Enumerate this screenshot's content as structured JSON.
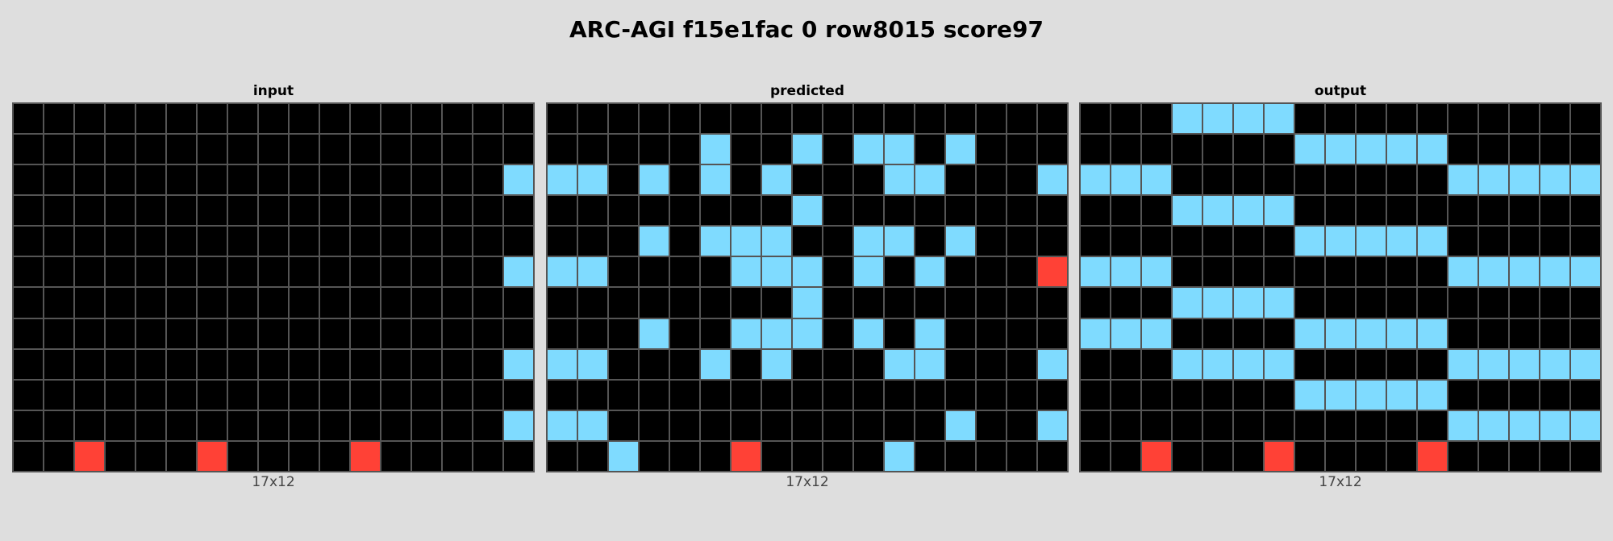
{
  "title": "ARC-AGI f15e1fac 0 row8015 score97",
  "palette": {
    "0": "#000000",
    "2": "#ff4136",
    "8": "#7fdbff"
  },
  "panels": [
    {
      "id": "input",
      "label": "input",
      "dims": "17x12",
      "grid": [
        [
          0,
          0,
          0,
          0,
          0,
          0,
          0,
          0,
          0,
          0,
          0,
          0,
          0,
          0,
          0,
          0,
          0
        ],
        [
          0,
          0,
          0,
          0,
          0,
          0,
          0,
          0,
          0,
          0,
          0,
          0,
          0,
          0,
          0,
          0,
          0
        ],
        [
          0,
          0,
          0,
          0,
          0,
          0,
          0,
          0,
          0,
          0,
          0,
          0,
          0,
          0,
          0,
          0,
          8
        ],
        [
          0,
          0,
          0,
          0,
          0,
          0,
          0,
          0,
          0,
          0,
          0,
          0,
          0,
          0,
          0,
          0,
          0
        ],
        [
          0,
          0,
          0,
          0,
          0,
          0,
          0,
          0,
          0,
          0,
          0,
          0,
          0,
          0,
          0,
          0,
          0
        ],
        [
          0,
          0,
          0,
          0,
          0,
          0,
          0,
          0,
          0,
          0,
          0,
          0,
          0,
          0,
          0,
          0,
          8
        ],
        [
          0,
          0,
          0,
          0,
          0,
          0,
          0,
          0,
          0,
          0,
          0,
          0,
          0,
          0,
          0,
          0,
          0
        ],
        [
          0,
          0,
          0,
          0,
          0,
          0,
          0,
          0,
          0,
          0,
          0,
          0,
          0,
          0,
          0,
          0,
          0
        ],
        [
          0,
          0,
          0,
          0,
          0,
          0,
          0,
          0,
          0,
          0,
          0,
          0,
          0,
          0,
          0,
          0,
          8
        ],
        [
          0,
          0,
          0,
          0,
          0,
          0,
          0,
          0,
          0,
          0,
          0,
          0,
          0,
          0,
          0,
          0,
          0
        ],
        [
          0,
          0,
          0,
          0,
          0,
          0,
          0,
          0,
          0,
          0,
          0,
          0,
          0,
          0,
          0,
          0,
          8
        ],
        [
          0,
          0,
          2,
          0,
          0,
          0,
          2,
          0,
          0,
          0,
          0,
          2,
          0,
          0,
          0,
          0,
          0
        ]
      ]
    },
    {
      "id": "predicted",
      "label": "predicted",
      "dims": "17x12",
      "grid": [
        [
          0,
          0,
          0,
          0,
          0,
          0,
          0,
          0,
          0,
          0,
          0,
          0,
          0,
          0,
          0,
          0,
          0
        ],
        [
          0,
          0,
          0,
          0,
          0,
          8,
          0,
          0,
          8,
          0,
          8,
          8,
          0,
          8,
          0,
          0,
          0
        ],
        [
          8,
          8,
          0,
          8,
          0,
          8,
          0,
          8,
          0,
          0,
          0,
          8,
          8,
          0,
          0,
          0,
          8
        ],
        [
          0,
          0,
          0,
          0,
          0,
          0,
          0,
          0,
          8,
          0,
          0,
          0,
          0,
          0,
          0,
          0,
          0
        ],
        [
          0,
          0,
          0,
          8,
          0,
          8,
          8,
          8,
          0,
          0,
          8,
          8,
          0,
          8,
          0,
          0,
          0
        ],
        [
          8,
          8,
          0,
          0,
          0,
          0,
          8,
          8,
          8,
          0,
          8,
          0,
          8,
          0,
          0,
          0,
          2
        ],
        [
          0,
          0,
          0,
          0,
          0,
          0,
          0,
          0,
          8,
          0,
          0,
          0,
          0,
          0,
          0,
          0,
          0
        ],
        [
          0,
          0,
          0,
          8,
          0,
          0,
          8,
          8,
          8,
          0,
          8,
          0,
          8,
          0,
          0,
          0,
          0
        ],
        [
          8,
          8,
          0,
          0,
          0,
          8,
          0,
          8,
          0,
          0,
          0,
          8,
          8,
          0,
          0,
          0,
          8
        ],
        [
          0,
          0,
          0,
          0,
          0,
          0,
          0,
          0,
          0,
          0,
          0,
          0,
          0,
          0,
          0,
          0,
          0
        ],
        [
          8,
          8,
          0,
          0,
          0,
          0,
          0,
          0,
          0,
          0,
          0,
          0,
          0,
          8,
          0,
          0,
          8
        ],
        [
          0,
          0,
          8,
          0,
          0,
          0,
          2,
          0,
          0,
          0,
          0,
          8,
          0,
          0,
          0,
          0,
          0
        ]
      ]
    },
    {
      "id": "output",
      "label": "output",
      "dims": "17x12",
      "grid": [
        [
          0,
          0,
          0,
          8,
          8,
          8,
          8,
          0,
          0,
          0,
          0,
          0,
          0,
          0,
          0,
          0,
          0
        ],
        [
          0,
          0,
          0,
          0,
          0,
          0,
          0,
          8,
          8,
          8,
          8,
          8,
          0,
          0,
          0,
          0,
          0
        ],
        [
          8,
          8,
          8,
          0,
          0,
          0,
          0,
          0,
          0,
          0,
          0,
          0,
          8,
          8,
          8,
          8,
          8
        ],
        [
          0,
          0,
          0,
          8,
          8,
          8,
          8,
          0,
          0,
          0,
          0,
          0,
          0,
          0,
          0,
          0,
          0
        ],
        [
          0,
          0,
          0,
          0,
          0,
          0,
          0,
          8,
          8,
          8,
          8,
          8,
          0,
          0,
          0,
          0,
          0
        ],
        [
          8,
          8,
          8,
          0,
          0,
          0,
          0,
          0,
          0,
          0,
          0,
          0,
          8,
          8,
          8,
          8,
          8
        ],
        [
          0,
          0,
          0,
          8,
          8,
          8,
          8,
          0,
          0,
          0,
          0,
          0,
          0,
          0,
          0,
          0,
          0
        ],
        [
          8,
          8,
          8,
          0,
          0,
          0,
          0,
          8,
          8,
          8,
          8,
          8,
          0,
          0,
          0,
          0,
          0
        ],
        [
          0,
          0,
          0,
          8,
          8,
          8,
          8,
          0,
          0,
          0,
          0,
          0,
          8,
          8,
          8,
          8,
          8
        ],
        [
          0,
          0,
          0,
          0,
          0,
          0,
          0,
          8,
          8,
          8,
          8,
          8,
          0,
          0,
          0,
          0,
          0
        ],
        [
          0,
          0,
          0,
          0,
          0,
          0,
          0,
          0,
          0,
          0,
          0,
          0,
          8,
          8,
          8,
          8,
          8
        ],
        [
          0,
          0,
          2,
          0,
          0,
          0,
          2,
          0,
          0,
          0,
          0,
          2,
          0,
          0,
          0,
          0,
          0
        ]
      ]
    }
  ]
}
